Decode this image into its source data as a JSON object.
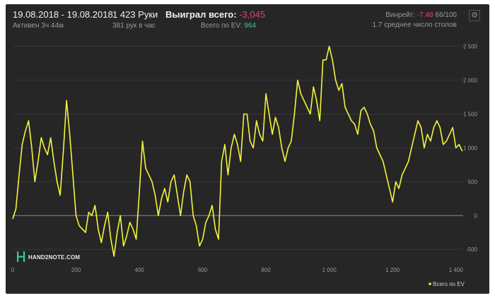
{
  "header": {
    "date_range": "19.08.2018 - 19.08.2018",
    "active_time": "Активен 3ч 44м",
    "hands": "1 423 Руки",
    "hands_per_hour": "381 рук в час",
    "won_label": "Выиграл всего:",
    "won_value": "-3,045",
    "ev_label": "Всего по EV:",
    "ev_value": "964",
    "winrate_label": "Винрейт:",
    "winrate_value": "-7.48",
    "winrate_count": "66/100",
    "avg_tables": "1.7 среднее число столов"
  },
  "logo": {
    "text": "HAND2NOTE.COM"
  },
  "legend": {
    "label": "Всего по EV"
  },
  "colors": {
    "line": "#f4f43c",
    "negative": "#e0466e",
    "positive": "#2fcf8e",
    "background": "#262626"
  },
  "chart_data": {
    "type": "line",
    "xlim": [
      0,
      1423
    ],
    "ylim": [
      -550,
      2600
    ],
    "x_ticks": [
      0,
      200,
      400,
      600,
      800,
      1000,
      1200,
      1400
    ],
    "x_tick_labels": [
      "0",
      "200",
      "400",
      "600",
      "800",
      "1 000",
      "1 200",
      "1 400"
    ],
    "y_ticks": [
      -500,
      0,
      500,
      1000,
      1500,
      2000,
      2500
    ],
    "y_tick_labels": [
      "-500",
      "0",
      "500",
      "1 000",
      "1 500",
      "2 000",
      "2 500"
    ],
    "grid": true,
    "legend_position": "bottom-right",
    "series": [
      {
        "name": "Всего по EV",
        "x": [
          0,
          10,
          20,
          30,
          40,
          50,
          60,
          70,
          80,
          90,
          100,
          110,
          120,
          130,
          140,
          150,
          160,
          170,
          180,
          190,
          200,
          210,
          220,
          230,
          240,
          250,
          260,
          270,
          280,
          290,
          300,
          310,
          320,
          330,
          340,
          350,
          360,
          370,
          380,
          390,
          400,
          410,
          420,
          430,
          440,
          450,
          460,
          470,
          480,
          490,
          500,
          510,
          520,
          530,
          540,
          550,
          560,
          570,
          580,
          590,
          600,
          610,
          620,
          630,
          640,
          650,
          660,
          670,
          680,
          690,
          700,
          710,
          720,
          730,
          740,
          750,
          760,
          770,
          780,
          790,
          800,
          810,
          820,
          830,
          840,
          850,
          860,
          870,
          880,
          890,
          900,
          910,
          920,
          930,
          940,
          950,
          960,
          970,
          980,
          990,
          1000,
          1010,
          1020,
          1030,
          1040,
          1050,
          1060,
          1070,
          1080,
          1090,
          1100,
          1110,
          1120,
          1130,
          1140,
          1150,
          1160,
          1170,
          1180,
          1190,
          1200,
          1210,
          1220,
          1230,
          1240,
          1250,
          1260,
          1270,
          1280,
          1290,
          1300,
          1310,
          1320,
          1330,
          1340,
          1350,
          1360,
          1370,
          1380,
          1390,
          1400,
          1410,
          1420
        ],
        "values": [
          -50,
          100,
          600,
          1050,
          1250,
          1400,
          1000,
          500,
          800,
          1150,
          1000,
          900,
          1150,
          800,
          500,
          300,
          950,
          1700,
          1200,
          600,
          0,
          -150,
          -200,
          -250,
          50,
          0,
          150,
          -200,
          -400,
          -150,
          50,
          -350,
          -600,
          -250,
          0,
          -450,
          -300,
          -100,
          -200,
          -350,
          350,
          1100,
          700,
          600,
          500,
          300,
          0,
          250,
          400,
          200,
          500,
          600,
          300,
          0,
          350,
          600,
          500,
          0,
          -150,
          -450,
          -350,
          -100,
          0,
          150,
          -200,
          -350,
          800,
          1050,
          600,
          1000,
          1200,
          1050,
          800,
          1500,
          1500,
          1100,
          1000,
          1400,
          1200,
          1100,
          1800,
          1500,
          1200,
          1450,
          1300,
          1000,
          800,
          1000,
          1100,
          1500,
          2000,
          1800,
          1700,
          1600,
          1500,
          1900,
          1700,
          1400,
          2300,
          2300,
          2500,
          2300,
          2000,
          1850,
          1950,
          1600,
          1500,
          1400,
          1350,
          1200,
          1550,
          1600,
          1500,
          1350,
          1250,
          1000,
          900,
          800,
          600,
          400,
          200,
          500,
          400,
          600,
          700,
          800,
          1000,
          1200,
          1400,
          1300,
          1000,
          1200,
          1100,
          1300,
          1400,
          1300,
          1050,
          1100,
          1200,
          1300,
          1000,
          1050,
          950
        ]
      }
    ]
  }
}
